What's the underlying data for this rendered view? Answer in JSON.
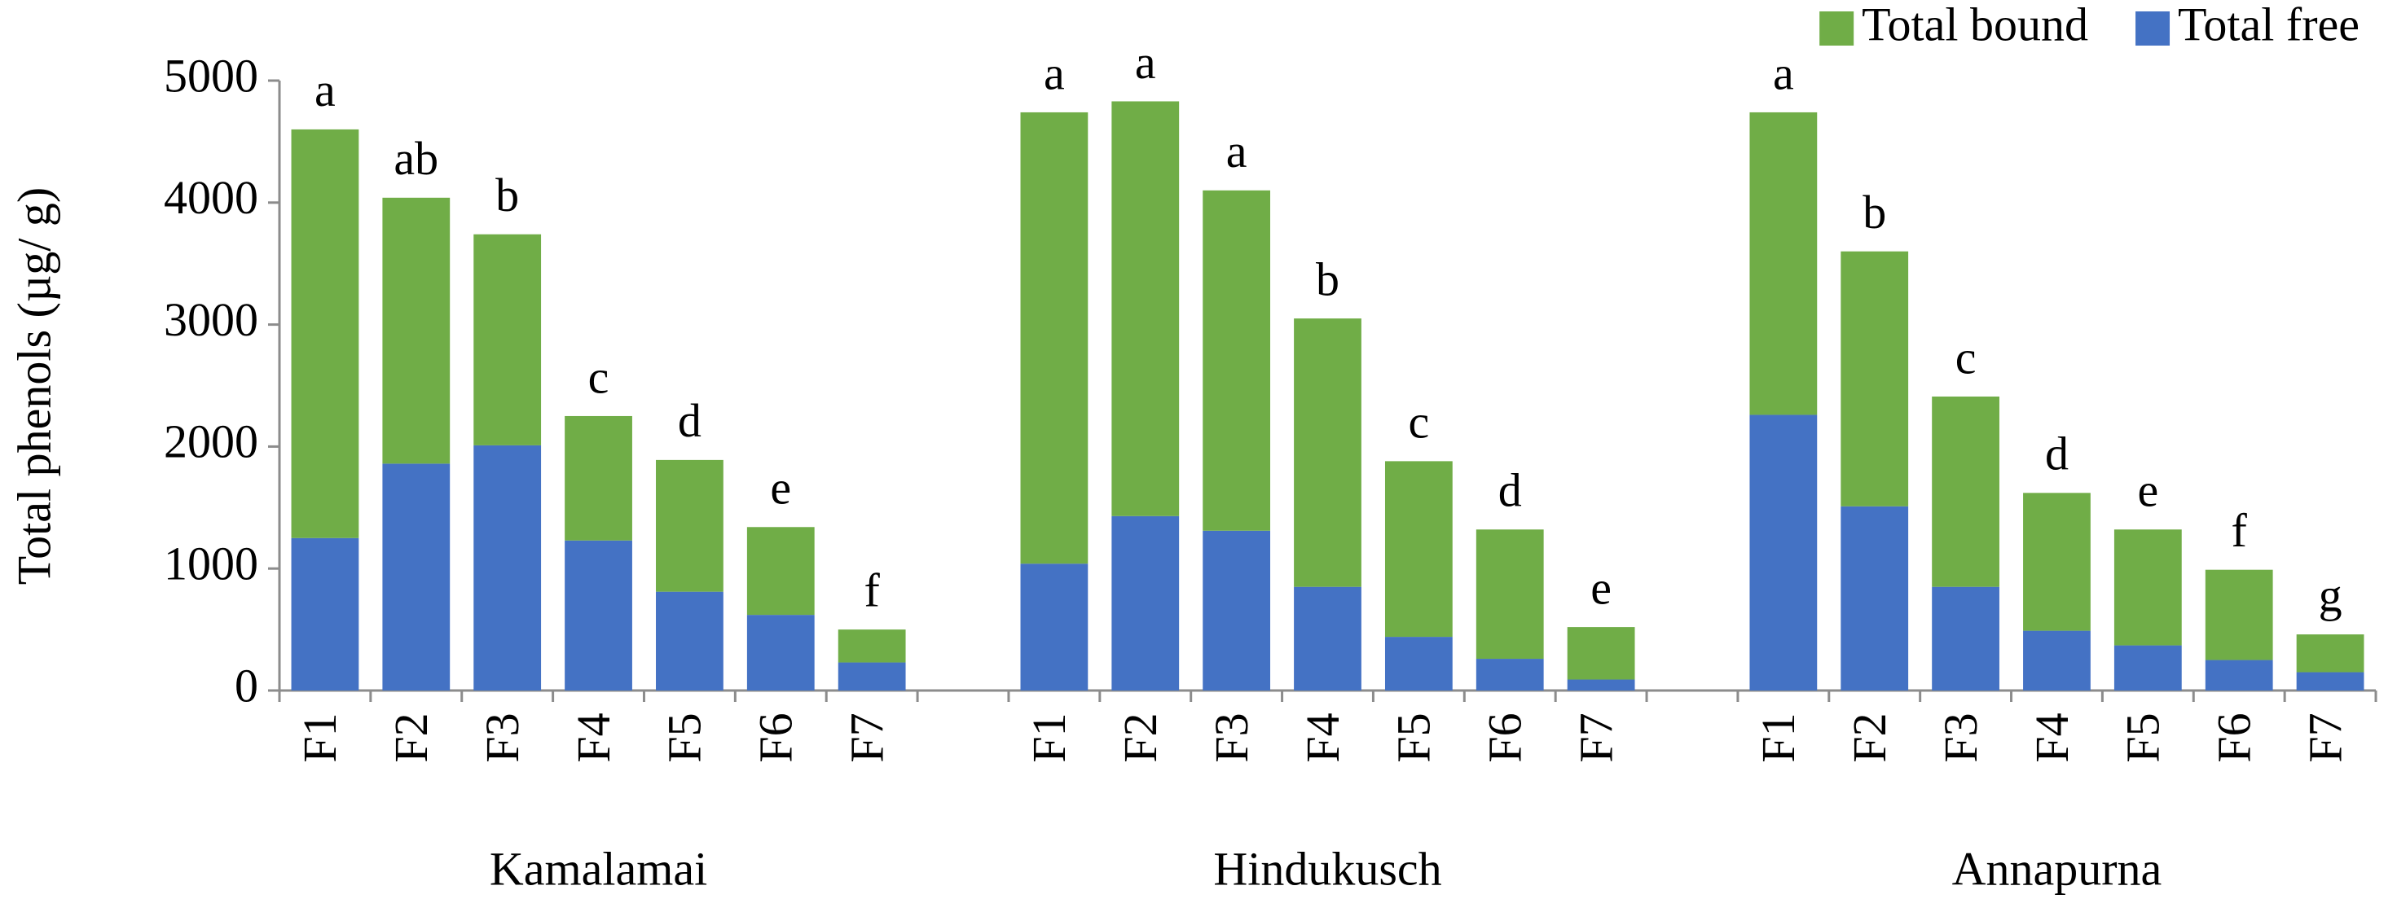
{
  "chart_data": {
    "type": "stacked-bar",
    "y_label": "Total phenols (µg/ g)",
    "groups": [
      "Kamalamai",
      "Hindukusch",
      "Annapurna"
    ],
    "categories": [
      "F1",
      "F2",
      "F3",
      "F4",
      "F5",
      "F6",
      "F7",
      "F1",
      "F2",
      "F3",
      "F4",
      "F5",
      "F6",
      "F7",
      "F1",
      "F2",
      "F3",
      "F4",
      "F5",
      "F6",
      "F7"
    ],
    "series": [
      {
        "name": "Total free",
        "color": "#4472c4",
        "values": [
          1250,
          1860,
          2010,
          1230,
          810,
          620,
          230,
          1040,
          1430,
          1310,
          850,
          440,
          260,
          90,
          2260,
          1510,
          850,
          490,
          370,
          250,
          150
        ]
      },
      {
        "name": "Total bound",
        "color": "#70ad47",
        "values": [
          3350,
          2180,
          1730,
          1020,
          1080,
          720,
          270,
          3700,
          3400,
          2790,
          2200,
          1440,
          1060,
          430,
          2480,
          2090,
          1560,
          1130,
          950,
          740,
          310
        ]
      }
    ],
    "annotations": [
      "a",
      "ab",
      "b",
      "c",
      "d",
      "e",
      "f",
      "a",
      "a",
      "a",
      "b",
      "c",
      "d",
      "e",
      "a",
      "b",
      "c",
      "d",
      "e",
      "f",
      "g"
    ],
    "ylim": [
      0,
      5000
    ],
    "yticks": [
      0,
      1000,
      2000,
      3000,
      4000,
      5000
    ],
    "legend": "top-right"
  }
}
